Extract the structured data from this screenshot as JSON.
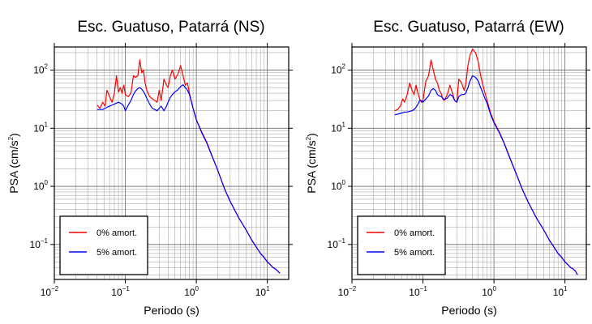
{
  "chart_data": [
    {
      "type": "line",
      "title": "Esc. Guatuso, Patarrá (NS)",
      "xlabel": "Periodo (s)",
      "ylabel_base": "PSA (cm/s",
      "ylabel_sup": "2",
      "ylabel_close": ")",
      "xscale": "log",
      "yscale": "log",
      "xlim": [
        0.01,
        20
      ],
      "ylim": [
        0.025,
        250
      ],
      "grid": true,
      "legend_position": "bottom-left",
      "xticks": [
        {
          "base": "10",
          "exp": "−2",
          "value": 0.01
        },
        {
          "base": "10",
          "exp": "−1",
          "value": 0.1
        },
        {
          "base": "10",
          "exp": "0",
          "value": 1
        },
        {
          "base": "10",
          "exp": "1",
          "value": 10
        }
      ],
      "yticks": [
        {
          "base": "10",
          "exp": "−1",
          "value": 0.1
        },
        {
          "base": "10",
          "exp": "0",
          "value": 1
        },
        {
          "base": "10",
          "exp": "1",
          "value": 10
        },
        {
          "base": "10",
          "exp": "2",
          "value": 100
        }
      ],
      "series": [
        {
          "name": "0% amort.",
          "color": "#ff0000",
          "x": [
            0.04,
            0.044,
            0.048,
            0.052,
            0.055,
            0.06,
            0.065,
            0.07,
            0.075,
            0.08,
            0.085,
            0.09,
            0.095,
            0.1,
            0.11,
            0.12,
            0.13,
            0.14,
            0.15,
            0.16,
            0.17,
            0.18,
            0.19,
            0.2,
            0.22,
            0.24,
            0.26,
            0.28,
            0.3,
            0.32,
            0.35,
            0.38,
            0.4,
            0.43,
            0.46,
            0.5,
            0.55,
            0.6,
            0.65,
            0.7,
            0.75,
            0.8,
            0.9,
            1.0,
            1.2,
            1.4,
            1.6,
            2.0,
            2.5,
            3.0,
            4.0,
            5.0,
            6.0,
            7.0,
            8.0,
            9.0,
            10.0,
            11.0,
            12.0,
            13.0,
            14.0,
            15.0
          ],
          "y": [
            25,
            22,
            28,
            24,
            45,
            35,
            28,
            40,
            80,
            42,
            50,
            40,
            55,
            38,
            35,
            40,
            80,
            75,
            80,
            150,
            90,
            100,
            60,
            45,
            35,
            32,
            30,
            28,
            45,
            30,
            70,
            55,
            50,
            80,
            100,
            70,
            85,
            120,
            80,
            55,
            60,
            40,
            22,
            14,
            8.5,
            5.8,
            3.8,
            1.9,
            0.9,
            0.55,
            0.28,
            0.18,
            0.12,
            0.09,
            0.07,
            0.06,
            0.05,
            0.045,
            0.04,
            0.038,
            0.035,
            0.032
          ]
        },
        {
          "name": "5% amort.",
          "color": "#0000ff",
          "x": [
            0.04,
            0.044,
            0.048,
            0.052,
            0.055,
            0.06,
            0.065,
            0.07,
            0.075,
            0.08,
            0.085,
            0.09,
            0.095,
            0.1,
            0.11,
            0.12,
            0.13,
            0.14,
            0.15,
            0.16,
            0.17,
            0.18,
            0.19,
            0.2,
            0.22,
            0.24,
            0.26,
            0.28,
            0.3,
            0.32,
            0.35,
            0.38,
            0.4,
            0.43,
            0.46,
            0.5,
            0.55,
            0.6,
            0.65,
            0.7,
            0.75,
            0.8,
            0.9,
            1.0,
            1.2,
            1.4,
            1.6,
            2.0,
            2.5,
            3.0,
            4.0,
            5.0,
            6.0,
            7.0,
            8.0,
            9.0,
            10.0,
            11.0,
            12.0,
            13.0,
            14.0,
            15.0
          ],
          "y": [
            21,
            21,
            21,
            22,
            23,
            24,
            25,
            26,
            27,
            28,
            27,
            26,
            24,
            20,
            25,
            30,
            38,
            44,
            48,
            50,
            47,
            43,
            38,
            33,
            26,
            22,
            21,
            20,
            22,
            24,
            20,
            24,
            28,
            34,
            38,
            42,
            46,
            52,
            56,
            50,
            45,
            38,
            22,
            14,
            8.2,
            5.6,
            3.7,
            1.9,
            0.9,
            0.55,
            0.28,
            0.18,
            0.12,
            0.09,
            0.07,
            0.06,
            0.05,
            0.045,
            0.04,
            0.038,
            0.035,
            0.032
          ]
        }
      ]
    },
    {
      "type": "line",
      "title": "Esc. Guatuso, Patarrá (EW)",
      "xlabel": "Periodo (s)",
      "ylabel_base": "PSA (cm/s",
      "ylabel_sup": "2",
      "ylabel_close": ")",
      "xscale": "log",
      "yscale": "log",
      "xlim": [
        0.01,
        20
      ],
      "ylim": [
        0.025,
        250
      ],
      "grid": true,
      "legend_position": "bottom-left",
      "xticks": [
        {
          "base": "10",
          "exp": "−2",
          "value": 0.01
        },
        {
          "base": "10",
          "exp": "−1",
          "value": 0.1
        },
        {
          "base": "10",
          "exp": "0",
          "value": 1
        },
        {
          "base": "10",
          "exp": "1",
          "value": 10
        }
      ],
      "yticks": [
        {
          "base": "10",
          "exp": "−1",
          "value": 0.1
        },
        {
          "base": "10",
          "exp": "0",
          "value": 1
        },
        {
          "base": "10",
          "exp": "1",
          "value": 10
        },
        {
          "base": "10",
          "exp": "2",
          "value": 100
        }
      ],
      "series": [
        {
          "name": "0% amort.",
          "color": "#ff0000",
          "x": [
            0.04,
            0.044,
            0.048,
            0.052,
            0.055,
            0.06,
            0.065,
            0.07,
            0.075,
            0.08,
            0.085,
            0.09,
            0.095,
            0.1,
            0.11,
            0.12,
            0.13,
            0.14,
            0.15,
            0.16,
            0.17,
            0.18,
            0.19,
            0.2,
            0.22,
            0.24,
            0.26,
            0.28,
            0.3,
            0.32,
            0.35,
            0.38,
            0.4,
            0.43,
            0.46,
            0.5,
            0.55,
            0.6,
            0.65,
            0.7,
            0.75,
            0.8,
            0.9,
            1.0,
            1.2,
            1.4,
            1.6,
            2.0,
            2.5,
            3.0,
            4.0,
            5.0,
            6.0,
            7.0,
            8.0,
            9.0,
            10.0,
            11.0,
            12.0,
            13.0,
            14.0,
            15.0
          ],
          "y": [
            20,
            21,
            24,
            32,
            28,
            38,
            60,
            45,
            38,
            55,
            40,
            32,
            28,
            30,
            65,
            80,
            150,
            100,
            70,
            60,
            45,
            40,
            32,
            30,
            38,
            55,
            40,
            30,
            28,
            70,
            60,
            45,
            55,
            120,
            180,
            230,
            200,
            140,
            80,
            55,
            40,
            30,
            18,
            13,
            8.5,
            5.5,
            3.6,
            1.8,
            0.9,
            0.55,
            0.28,
            0.18,
            0.12,
            0.09,
            0.07,
            0.06,
            0.05,
            0.045,
            0.04,
            0.038,
            0.035,
            0.03
          ]
        },
        {
          "name": "5% amort.",
          "color": "#0000ff",
          "x": [
            0.04,
            0.044,
            0.048,
            0.052,
            0.055,
            0.06,
            0.065,
            0.07,
            0.075,
            0.08,
            0.085,
            0.09,
            0.095,
            0.1,
            0.11,
            0.12,
            0.13,
            0.14,
            0.15,
            0.16,
            0.17,
            0.18,
            0.19,
            0.2,
            0.22,
            0.24,
            0.26,
            0.28,
            0.3,
            0.32,
            0.35,
            0.38,
            0.4,
            0.43,
            0.46,
            0.5,
            0.55,
            0.6,
            0.65,
            0.7,
            0.75,
            0.8,
            0.9,
            1.0,
            1.2,
            1.4,
            1.6,
            2.0,
            2.5,
            3.0,
            4.0,
            5.0,
            6.0,
            7.0,
            8.0,
            9.0,
            10.0,
            11.0,
            12.0,
            13.0,
            14.0,
            15.0
          ],
          "y": [
            17,
            17.5,
            18,
            18.5,
            19,
            19,
            19.5,
            20,
            21,
            23,
            26,
            30,
            30,
            28,
            32,
            36,
            45,
            48,
            45,
            38,
            36,
            35,
            33,
            31,
            33,
            38,
            36,
            30,
            28,
            35,
            38,
            38,
            40,
            50,
            65,
            80,
            75,
            65,
            50,
            40,
            32,
            27,
            17,
            12.5,
            8.2,
            5.4,
            3.5,
            1.8,
            0.9,
            0.55,
            0.28,
            0.18,
            0.12,
            0.09,
            0.07,
            0.06,
            0.05,
            0.045,
            0.04,
            0.038,
            0.035,
            0.03
          ]
        }
      ]
    }
  ]
}
